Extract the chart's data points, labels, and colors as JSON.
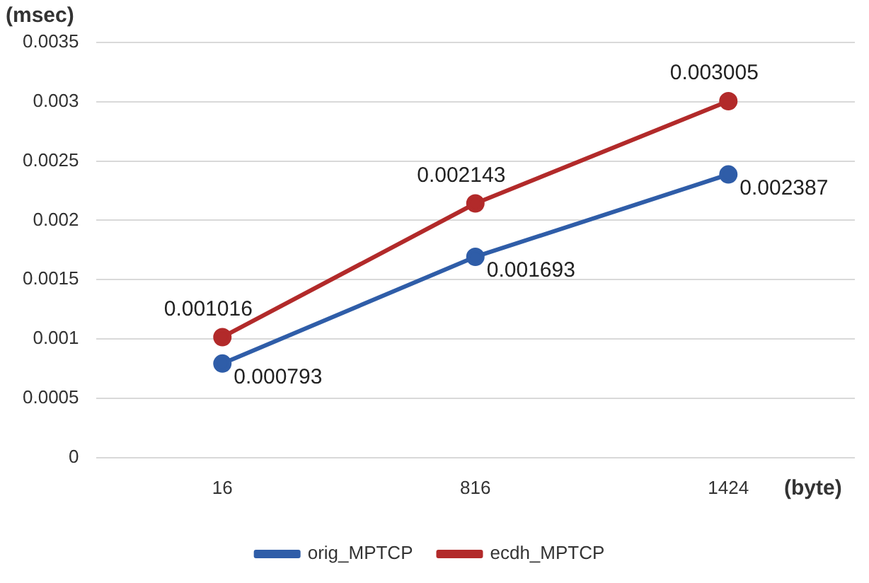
{
  "chart_data": {
    "type": "line",
    "ylabel": "(msec)",
    "xlabel": "(byte)",
    "categories": [
      "16",
      "816",
      "1424"
    ],
    "series": [
      {
        "name": "orig_MPTCP",
        "color": "#2f5da8",
        "values": [
          0.000793,
          0.001693,
          0.002387
        ]
      },
      {
        "name": "ecdh_MPTCP",
        "color": "#b22a2a",
        "values": [
          0.001016,
          0.002143,
          0.003005
        ]
      }
    ],
    "ylim": [
      0,
      0.0035
    ],
    "yticks": [
      0,
      0.0005,
      0.001,
      0.0015,
      0.002,
      0.0025,
      0.003,
      0.0035
    ],
    "grid": "y",
    "legend": "bottom",
    "marker": "circle",
    "line_style": "solid",
    "data_labels": true
  }
}
